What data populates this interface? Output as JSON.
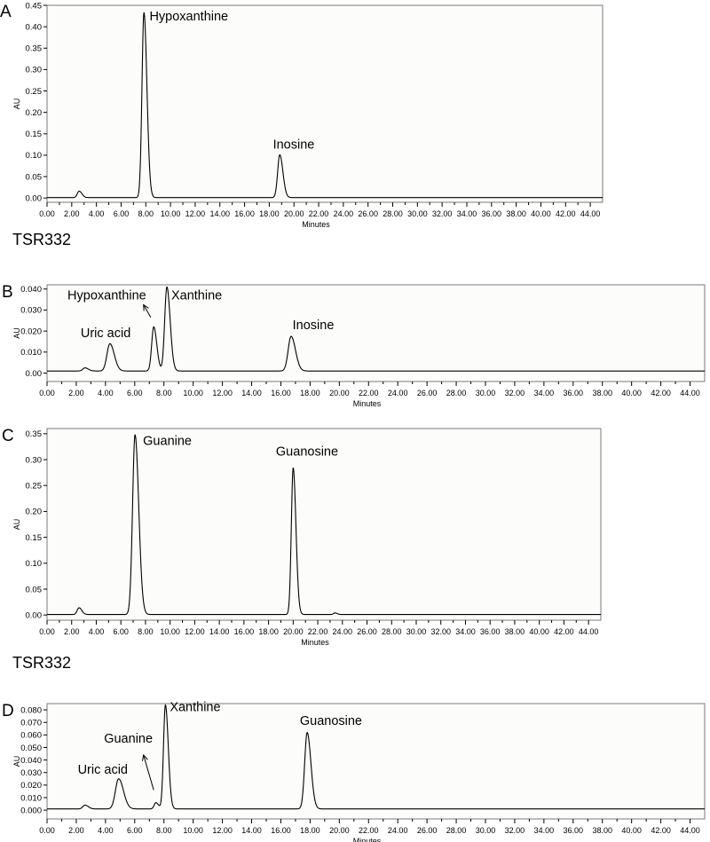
{
  "strain_labels": [
    "TSR332",
    "TSR332"
  ],
  "chart_data": [
    {
      "type": "line",
      "panel_letter": "A",
      "xlabel": "Minutes",
      "ylabel": "AU",
      "xlim": [
        0,
        45
      ],
      "ylim": [
        -0.01,
        0.45
      ],
      "x_ticks": [
        "0.00",
        "2.00",
        "4.00",
        "6.00",
        "8.00",
        "10.00",
        "12.00",
        "14.00",
        "16.00",
        "18.00",
        "20.00",
        "22.00",
        "24.00",
        "26.00",
        "28.00",
        "30.00",
        "32.00",
        "34.00",
        "36.00",
        "38.00",
        "40.00",
        "42.00",
        "44.00"
      ],
      "y_ticks": [
        "0.00",
        "0.05",
        "0.10",
        "0.15",
        "0.20",
        "0.25",
        "0.30",
        "0.35",
        "0.40",
        "0.45"
      ],
      "baseline": 0.001,
      "peaks": [
        {
          "x": 2.6,
          "height": 0.015,
          "width": 0.15
        },
        {
          "x": 7.85,
          "height": 0.432,
          "width": 0.16
        },
        {
          "x": 18.85,
          "height": 0.1,
          "width": 0.17
        }
      ],
      "annotations": [
        {
          "text": "Hypoxanthine",
          "x": 8.3,
          "y": 0.415
        },
        {
          "text": "Inosine",
          "x": 18.3,
          "y": 0.115
        }
      ]
    },
    {
      "type": "line",
      "panel_letter": "B",
      "xlabel": "Minutes",
      "ylabel": "AU",
      "xlim": [
        0,
        45
      ],
      "ylim": [
        -0.004,
        0.042
      ],
      "x_ticks": [
        "0.00",
        "2.00",
        "4.00",
        "6.00",
        "8.00",
        "10.00",
        "12.00",
        "14.00",
        "16.00",
        "18.00",
        "20.00",
        "22.00",
        "24.00",
        "26.00",
        "28.00",
        "30.00",
        "32.00",
        "34.00",
        "36.00",
        "38.00",
        "40.00",
        "42.00",
        "44.00"
      ],
      "y_ticks": [
        "0.00",
        "0.010",
        "0.020",
        "0.030",
        "0.040"
      ],
      "baseline": 0.001,
      "peaks": [
        {
          "x": 2.6,
          "height": 0.0015,
          "width": 0.15
        },
        {
          "x": 4.3,
          "height": 0.013,
          "width": 0.2
        },
        {
          "x": 7.3,
          "height": 0.021,
          "width": 0.14
        },
        {
          "x": 8.2,
          "height": 0.04,
          "width": 0.15
        },
        {
          "x": 16.7,
          "height": 0.0165,
          "width": 0.2
        }
      ],
      "annotations": [
        {
          "text": "Hypoxanthine",
          "x": 1.4,
          "y": 0.035
        },
        {
          "text": "Xanthine",
          "x": 8.5,
          "y": 0.035
        },
        {
          "text": "Uric acid",
          "x": 2.3,
          "y": 0.017
        },
        {
          "text": "Inosine",
          "x": 16.8,
          "y": 0.021
        }
      ],
      "arrows": [
        {
          "from": [
            7.1,
            0.0265
          ],
          "to": [
            6.6,
            0.0325
          ]
        }
      ]
    },
    {
      "type": "line",
      "panel_letter": "C",
      "xlabel": "Minutes",
      "ylabel": "AU",
      "xlim": [
        0,
        45
      ],
      "ylim": [
        -0.01,
        0.36
      ],
      "x_ticks": [
        "0.00",
        "2.00",
        "4.00",
        "6.00",
        "8.00",
        "10.00",
        "12.00",
        "14.00",
        "16.00",
        "18.00",
        "20.00",
        "22.00",
        "24.00",
        "26.00",
        "28.00",
        "30.00",
        "32.00",
        "34.00",
        "36.00",
        "38.00",
        "40.00",
        "42.00",
        "44.00"
      ],
      "y_ticks": [
        "0.00",
        "0.05",
        "0.10",
        "0.15",
        "0.20",
        "0.25",
        "0.30",
        "0.35"
      ],
      "baseline": 0.001,
      "peaks": [
        {
          "x": 2.6,
          "height": 0.013,
          "width": 0.15
        },
        {
          "x": 7.15,
          "height": 0.347,
          "width": 0.2
        },
        {
          "x": 20.0,
          "height": 0.283,
          "width": 0.15
        },
        {
          "x": 23.4,
          "height": 0.003,
          "width": 0.12
        }
      ],
      "annotations": [
        {
          "text": "Guanine",
          "x": 7.8,
          "y": 0.328
        },
        {
          "text": "Guanosine",
          "x": 18.6,
          "y": 0.308
        }
      ]
    },
    {
      "type": "line",
      "panel_letter": "D",
      "xlabel": "Minutes",
      "ylabel": "AU",
      "xlim": [
        0,
        45
      ],
      "ylim": [
        -0.007,
        0.085
      ],
      "x_ticks": [
        "0.00",
        "2.00",
        "4.00",
        "6.00",
        "8.00",
        "10.00",
        "12.00",
        "14.00",
        "16.00",
        "18.00",
        "20.00",
        "22.00",
        "24.00",
        "26.00",
        "28.00",
        "30.00",
        "32.00",
        "34.00",
        "36.00",
        "38.00",
        "40.00",
        "42.00",
        "44.00"
      ],
      "y_ticks": [
        "0.000",
        "0.010",
        "0.020",
        "0.030",
        "0.040",
        "0.050",
        "0.060",
        "0.070",
        "0.080"
      ],
      "baseline": 0.001,
      "peaks": [
        {
          "x": 2.6,
          "height": 0.003,
          "width": 0.15
        },
        {
          "x": 4.9,
          "height": 0.024,
          "width": 0.22
        },
        {
          "x": 7.45,
          "height": 0.005,
          "width": 0.12
        },
        {
          "x": 8.1,
          "height": 0.083,
          "width": 0.13
        },
        {
          "x": 17.8,
          "height": 0.061,
          "width": 0.17
        }
      ],
      "annotations": [
        {
          "text": "Xanthine",
          "x": 8.4,
          "y": 0.079
        },
        {
          "text": "Guanine",
          "x": 3.9,
          "y": 0.054
        },
        {
          "text": "Uric acid",
          "x": 2.1,
          "y": 0.029
        },
        {
          "text": "Guanosine",
          "x": 17.3,
          "y": 0.068
        }
      ],
      "arrows": [
        {
          "from": [
            7.3,
            0.016
          ],
          "to": [
            6.6,
            0.044
          ]
        }
      ]
    }
  ]
}
